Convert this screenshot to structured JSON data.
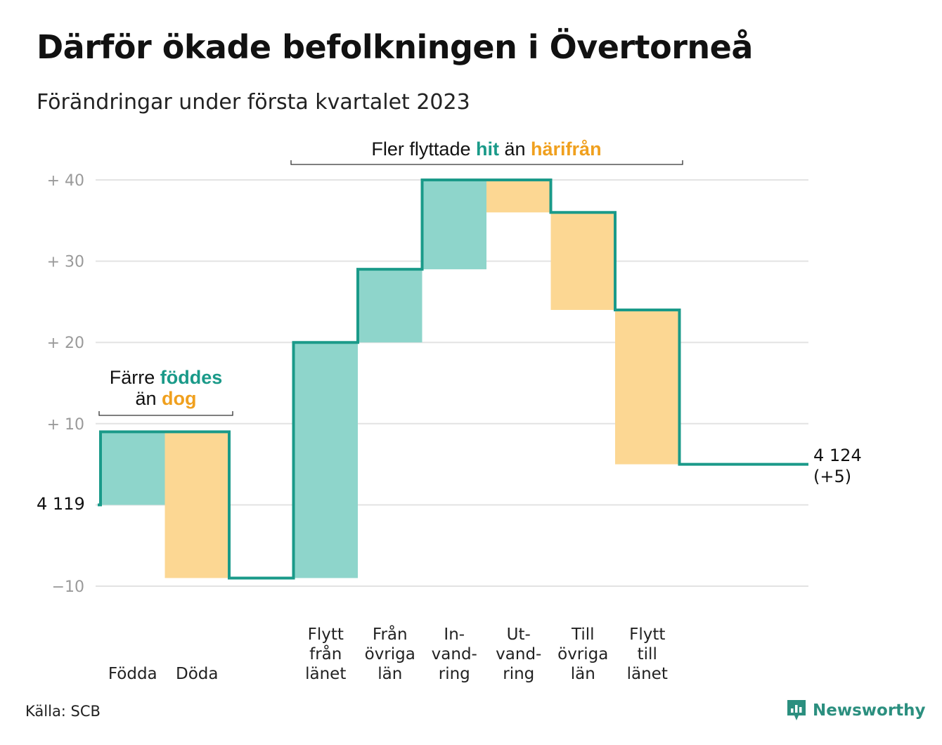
{
  "title": "Därför ökade befolkningen i Övertorneå",
  "subtitle": "Förändringar under första kvartalet 2023",
  "source": "Källa: SCB",
  "brand": {
    "name": "Newsworthy",
    "icon": "newsworthy-logo-icon"
  },
  "colors": {
    "increase": "#8ed5cb",
    "decrease": "#fcd793",
    "line": "#1a9a89",
    "grid": "#e3e3e3",
    "accent_teal": "#1a9a89",
    "accent_orange": "#f0a01e"
  },
  "annotations": {
    "births_deaths": {
      "line1_prefix": "Färre ",
      "line1_highlight": "föddes",
      "line2_prefix": "än ",
      "line2_highlight": "dog"
    },
    "migration": {
      "prefix": "Fler flyttade ",
      "highlight1": "hit",
      "middle": " än ",
      "highlight2": "härifrån"
    }
  },
  "chart_data": {
    "type": "waterfall",
    "start_value": 4119,
    "start_label": "4 119",
    "end_value": 4124,
    "end_label": "4 124",
    "end_change_label": "(+5)",
    "y_axis": {
      "min": -10,
      "max": 40,
      "ticks": [
        -10,
        0,
        10,
        20,
        30,
        40
      ],
      "tick_labels": [
        "−10",
        "4 119",
        "+ 10",
        "+ 20",
        "+ 30",
        "+ 40"
      ]
    },
    "grid": true,
    "steps": [
      {
        "category": "Födda",
        "lines": [
          "Födda"
        ],
        "change": 9,
        "slot": 0
      },
      {
        "category": "Döda",
        "lines": [
          "Döda"
        ],
        "change": -18,
        "slot": 1
      },
      {
        "category": "Flytt från länet",
        "lines": [
          "Flytt",
          "från",
          "länet"
        ],
        "change": 29,
        "slot": 3
      },
      {
        "category": "Från övriga län",
        "lines": [
          "Från",
          "övriga",
          "län"
        ],
        "change": 9,
        "slot": 4
      },
      {
        "category": "Invandring",
        "lines": [
          "In-",
          "vand-",
          "ring"
        ],
        "change": 11,
        "slot": 5
      },
      {
        "category": "Utvandring",
        "lines": [
          "Ut-",
          "vand-",
          "ring"
        ],
        "change": -4,
        "slot": 6
      },
      {
        "category": "Till övriga län",
        "lines": [
          "Till",
          "övriga",
          "län"
        ],
        "change": -12,
        "slot": 7
      },
      {
        "category": "Flytt till länet",
        "lines": [
          "Flytt",
          "till",
          "länet"
        ],
        "change": -19,
        "slot": 8
      }
    ]
  }
}
